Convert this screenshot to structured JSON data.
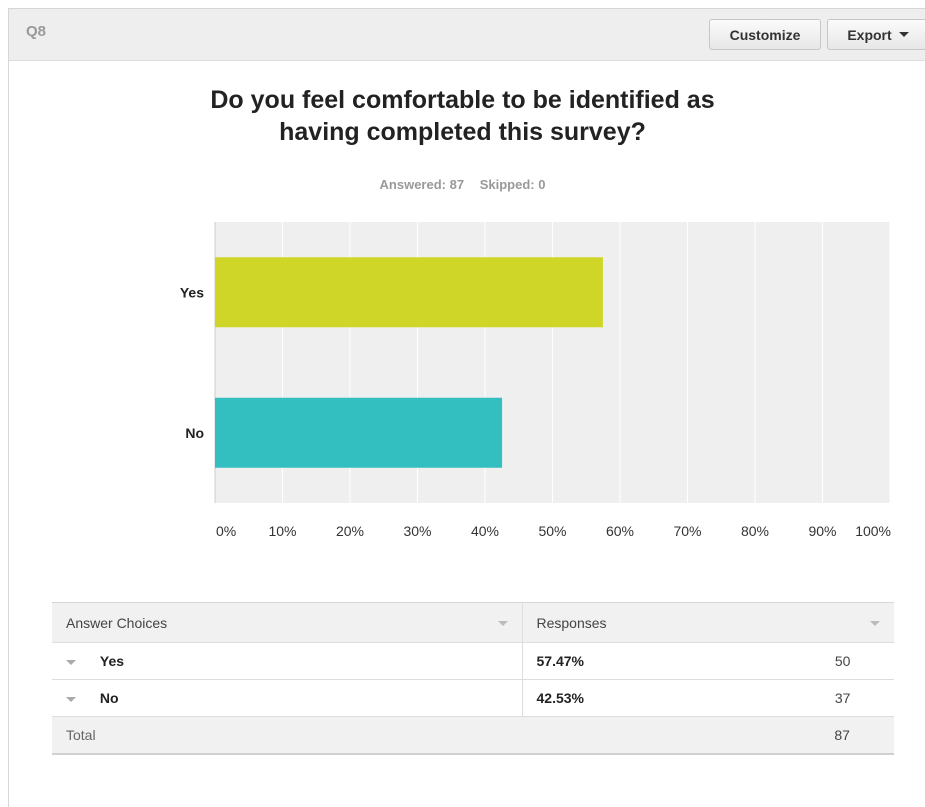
{
  "header": {
    "question_number": "Q8",
    "customize_label": "Customize",
    "export_label": "Export"
  },
  "question": {
    "title_line1": "Do you feel comfortable to be identified as",
    "title_line2": "having completed this survey?",
    "answered": "Answered: 87",
    "skipped": "Skipped: 0"
  },
  "chart_data": {
    "type": "bar",
    "orientation": "horizontal",
    "categories": [
      "Yes",
      "No"
    ],
    "values": [
      57.47,
      42.53
    ],
    "colors": [
      "#d0d627",
      "#33bec0"
    ],
    "xlim": [
      0,
      100
    ],
    "xticks": [
      "0%",
      "10%",
      "20%",
      "30%",
      "40%",
      "50%",
      "60%",
      "70%",
      "80%",
      "90%",
      "100%"
    ],
    "grid": true
  },
  "table": {
    "headers": [
      "Answer Choices",
      "Responses"
    ],
    "rows": [
      {
        "choice": "Yes",
        "percent": "57.47%",
        "count": "50"
      },
      {
        "choice": "No",
        "percent": "42.53%",
        "count": "37"
      }
    ],
    "total_label": "Total",
    "total_count": "87"
  }
}
